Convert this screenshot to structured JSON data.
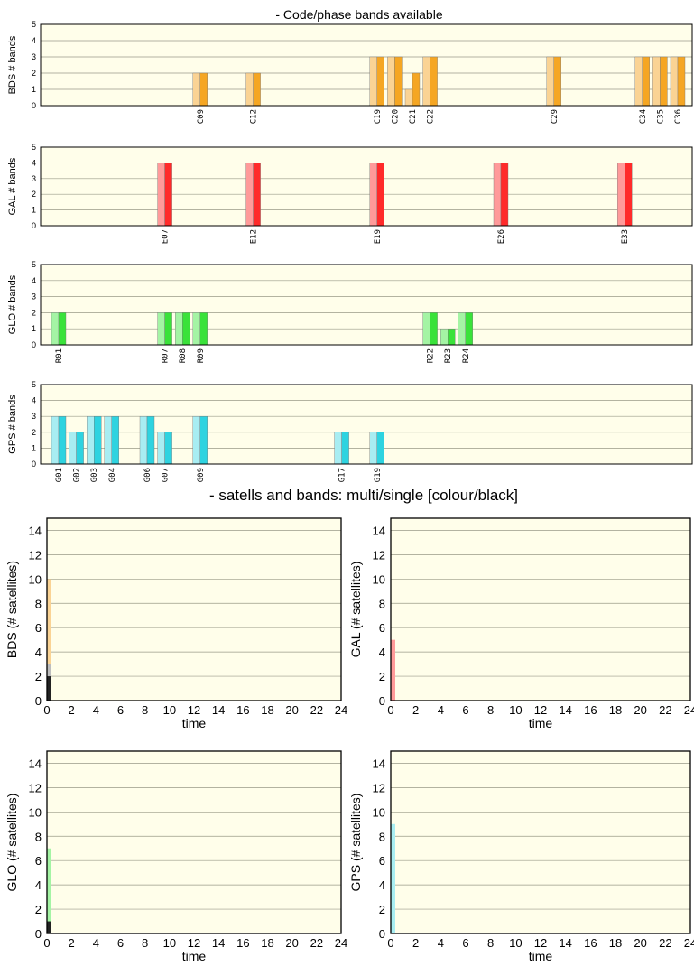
{
  "titles": {
    "bands": "- Code/phase bands available",
    "time": "- satells and bands: multi/single [colour/black]"
  },
  "chart_data": [
    {
      "type": "bar",
      "system": "BDS",
      "ylabel": "BDS # bands",
      "ylim": [
        0,
        5
      ],
      "yticks": [
        "0",
        "1",
        "2",
        "3",
        "4",
        "5"
      ],
      "color": "#f5a623",
      "light_color": "#fad394",
      "categories": [
        "C09",
        "C12",
        "C19",
        "C20",
        "C21",
        "C22",
        "C29",
        "C34",
        "C35",
        "C36"
      ],
      "values": [
        2,
        2,
        3,
        3,
        2,
        3,
        3,
        3,
        3,
        3
      ],
      "light_values": [
        2,
        2,
        3,
        3,
        1,
        3,
        3,
        3,
        3,
        3
      ]
    },
    {
      "type": "bar",
      "system": "GAL",
      "ylabel": "GAL # bands",
      "ylim": [
        0,
        5
      ],
      "yticks": [
        "0",
        "1",
        "2",
        "3",
        "4",
        "5"
      ],
      "color": "#ff2a2a",
      "light_color": "#ff9a9a",
      "categories": [
        "E07",
        "E12",
        "E19",
        "E26",
        "E33"
      ],
      "values": [
        4,
        4,
        4,
        4,
        4
      ],
      "light_values": [
        4,
        4,
        4,
        4,
        4
      ]
    },
    {
      "type": "bar",
      "system": "GLO",
      "ylabel": "GLO # bands",
      "ylim": [
        0,
        5
      ],
      "yticks": [
        "0",
        "1",
        "2",
        "3",
        "4",
        "5"
      ],
      "color": "#3ae23a",
      "light_color": "#a4f4a4",
      "categories": [
        "R01",
        "R07",
        "R08",
        "R09",
        "R22",
        "R23",
        "R24"
      ],
      "values": [
        2,
        2,
        2,
        2,
        2,
        1,
        2
      ],
      "light_values": [
        2,
        2,
        2,
        2,
        2,
        1,
        2
      ]
    },
    {
      "type": "bar",
      "system": "GPS",
      "ylabel": "GPS # bands",
      "ylim": [
        0,
        5
      ],
      "yticks": [
        "0",
        "1",
        "2",
        "3",
        "4",
        "5"
      ],
      "color": "#2ed3e0",
      "light_color": "#a8edf2",
      "categories": [
        "G01",
        "G02",
        "G03",
        "G04",
        "G06",
        "G07",
        "G09",
        "G17",
        "G19"
      ],
      "values": [
        3,
        2,
        3,
        3,
        3,
        2,
        3,
        2,
        2
      ],
      "light_values": [
        3,
        2,
        3,
        3,
        3,
        2,
        3,
        2,
        2
      ]
    },
    {
      "type": "area",
      "system": "BDS",
      "ylabel": "BDS (# satellites)",
      "xlabel": "time",
      "xlim": [
        0,
        24
      ],
      "ylim": [
        0,
        15
      ],
      "xticks": [
        "0",
        "2",
        "4",
        "6",
        "8",
        "10",
        "12",
        "14",
        "16",
        "18",
        "20",
        "22",
        "24"
      ],
      "yticks": [
        "0",
        "2",
        "4",
        "6",
        "8",
        "10",
        "12",
        "14"
      ],
      "color": "#fad394",
      "x": [
        0
      ],
      "multi": [
        10
      ],
      "single": [
        2
      ],
      "grey": [
        3
      ]
    },
    {
      "type": "area",
      "system": "GAL",
      "ylabel": "GAL (# satellites)",
      "xlabel": "time",
      "xlim": [
        0,
        24
      ],
      "ylim": [
        0,
        15
      ],
      "xticks": [
        "0",
        "2",
        "4",
        "6",
        "8",
        "10",
        "12",
        "14",
        "16",
        "18",
        "20",
        "22",
        "24"
      ],
      "yticks": [
        "0",
        "2",
        "4",
        "6",
        "8",
        "10",
        "12",
        "14"
      ],
      "color": "#ff9a9a",
      "x": [
        0
      ],
      "multi": [
        5
      ],
      "single": [
        0
      ],
      "grey": [
        0
      ]
    },
    {
      "type": "area",
      "system": "GLO",
      "ylabel": "GLO (# satellites)",
      "xlabel": "time",
      "xlim": [
        0,
        24
      ],
      "ylim": [
        0,
        15
      ],
      "xticks": [
        "0",
        "2",
        "4",
        "6",
        "8",
        "10",
        "12",
        "14",
        "16",
        "18",
        "20",
        "22",
        "24"
      ],
      "yticks": [
        "0",
        "2",
        "4",
        "6",
        "8",
        "10",
        "12",
        "14"
      ],
      "color": "#a4f4a4",
      "x": [
        0
      ],
      "multi": [
        7
      ],
      "single": [
        1
      ],
      "grey": [
        0
      ]
    },
    {
      "type": "area",
      "system": "GPS",
      "ylabel": "GPS (# satellites)",
      "xlabel": "time",
      "xlim": [
        0,
        24
      ],
      "ylim": [
        0,
        15
      ],
      "xticks": [
        "0",
        "2",
        "4",
        "6",
        "8",
        "10",
        "12",
        "14",
        "16",
        "18",
        "20",
        "22",
        "24"
      ],
      "yticks": [
        "0",
        "2",
        "4",
        "6",
        "8",
        "10",
        "12",
        "14"
      ],
      "color": "#a8edf2",
      "x": [
        0
      ],
      "multi": [
        9
      ],
      "single": [
        0
      ],
      "grey": [
        0
      ]
    }
  ],
  "colors": {
    "plot_bg": "#fffeea",
    "grid": "#9a9a88",
    "frame": "#000000",
    "single": "#222222",
    "grey": "#bdbdbd"
  }
}
